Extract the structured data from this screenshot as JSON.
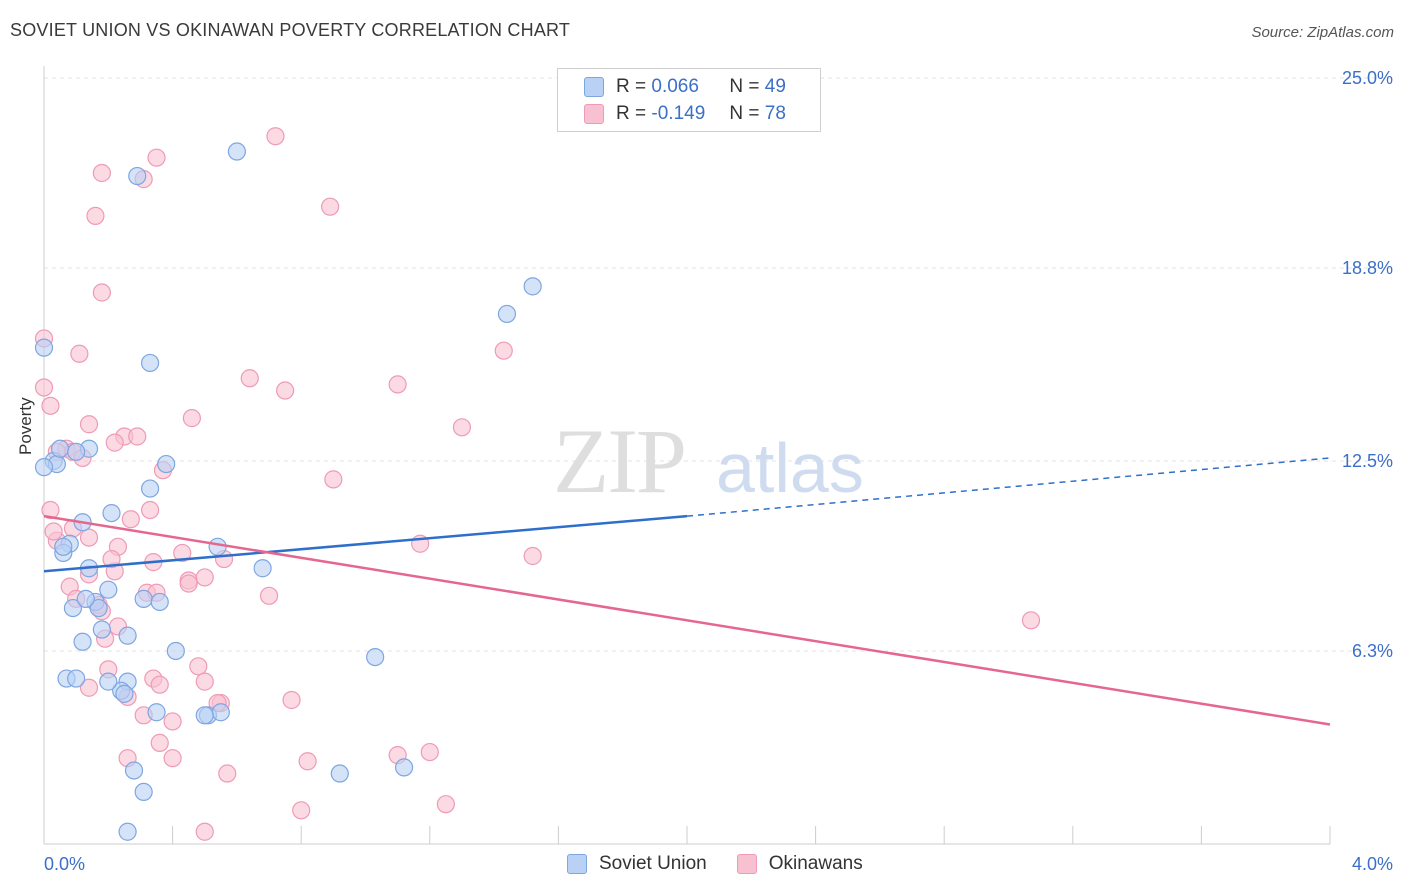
{
  "title": "SOVIET UNION VS OKINAWAN POVERTY CORRELATION CHART",
  "source": "Source: ZipAtlas.com",
  "watermark": {
    "zip": "ZIP",
    "atlas": "atlas"
  },
  "legend": {
    "rows": [
      {
        "r_label": "R =",
        "r_value": "0.066",
        "n_label": "N =",
        "n_value": "49"
      },
      {
        "r_label": "R =",
        "r_value": "-0.149",
        "n_label": "N =",
        "n_value": "78"
      }
    ]
  },
  "colors": {
    "soviet_fill": "#b9d1f5",
    "soviet_stroke": "#7ea6e0",
    "soviet_line": "#2f6fcc",
    "okinawan_fill": "#f8c1d2",
    "okinawan_stroke": "#ef9ab6",
    "okinawan_line": "#e5678f",
    "axis_label": "#3b6fc8",
    "grid": "#e3e3e3"
  },
  "chart_data": {
    "type": "scatter",
    "title": "SOVIET UNION VS OKINAWAN POVERTY CORRELATION CHART",
    "xlabel": "",
    "ylabel": "Poverty",
    "xlim": [
      0,
      4.0
    ],
    "ylim": [
      0,
      25.0
    ],
    "x_tick_labels": [
      "0.0%",
      "4.0%"
    ],
    "y_ticks": [
      6.3,
      12.5,
      18.8,
      25.0
    ],
    "y_tick_labels": [
      "6.3%",
      "12.5%",
      "18.8%",
      "25.0%"
    ],
    "legend_position": "bottom-center",
    "series": [
      {
        "name": "Soviet Union",
        "r": 0.066,
        "n": 49,
        "trend": {
          "x0": 0.0,
          "y0": 8.9,
          "x_solid_end": 2.0,
          "y_solid_end": 10.7,
          "x1": 4.0,
          "y1": 12.6
        },
        "points": [
          [
            0.0,
            16.2
          ],
          [
            0.6,
            22.6
          ],
          [
            0.29,
            21.8
          ],
          [
            1.52,
            18.2
          ],
          [
            1.44,
            17.3
          ],
          [
            0.33,
            15.7
          ],
          [
            0.03,
            12.5
          ],
          [
            0.04,
            12.4
          ],
          [
            0.14,
            12.9
          ],
          [
            0.38,
            12.4
          ],
          [
            0.05,
            12.9
          ],
          [
            0.33,
            11.6
          ],
          [
            0.21,
            10.8
          ],
          [
            0.12,
            10.5
          ],
          [
            0.08,
            9.8
          ],
          [
            0.06,
            9.5
          ],
          [
            0.54,
            9.7
          ],
          [
            0.68,
            9.0
          ],
          [
            0.14,
            9.0
          ],
          [
            0.2,
            8.3
          ],
          [
            0.31,
            8.0
          ],
          [
            0.16,
            7.9
          ],
          [
            0.09,
            7.7
          ],
          [
            0.17,
            7.7
          ],
          [
            0.18,
            7.0
          ],
          [
            0.26,
            6.8
          ],
          [
            0.12,
            6.6
          ],
          [
            0.41,
            6.3
          ],
          [
            1.03,
            6.1
          ],
          [
            0.07,
            5.4
          ],
          [
            0.1,
            5.4
          ],
          [
            0.26,
            5.3
          ],
          [
            0.24,
            5.0
          ],
          [
            0.25,
            4.9
          ],
          [
            0.35,
            4.3
          ],
          [
            0.51,
            4.2
          ],
          [
            0.55,
            4.3
          ],
          [
            0.28,
            2.4
          ],
          [
            0.92,
            2.3
          ],
          [
            1.12,
            2.5
          ],
          [
            0.31,
            1.7
          ],
          [
            0.26,
            0.4
          ],
          [
            0.1,
            12.8
          ],
          [
            0.06,
            9.7
          ],
          [
            0.13,
            8.0
          ],
          [
            0.36,
            7.9
          ],
          [
            0.2,
            5.3
          ],
          [
            0.5,
            4.2
          ],
          [
            0.0,
            12.3
          ]
        ]
      },
      {
        "name": "Okinawans",
        "r": -0.149,
        "n": 78,
        "trend": {
          "x0": 0.0,
          "y0": 10.7,
          "x1": 4.0,
          "y1": 3.9
        },
        "points": [
          [
            0.72,
            23.1
          ],
          [
            0.35,
            22.4
          ],
          [
            0.18,
            21.9
          ],
          [
            0.31,
            21.7
          ],
          [
            0.89,
            20.8
          ],
          [
            0.16,
            20.5
          ],
          [
            0.18,
            18.0
          ],
          [
            0.0,
            16.5
          ],
          [
            1.43,
            16.1
          ],
          [
            0.11,
            16.0
          ],
          [
            0.64,
            15.2
          ],
          [
            0.0,
            14.9
          ],
          [
            1.1,
            15.0
          ],
          [
            0.75,
            14.8
          ],
          [
            0.02,
            14.3
          ],
          [
            0.46,
            13.9
          ],
          [
            1.3,
            13.6
          ],
          [
            0.14,
            13.7
          ],
          [
            0.25,
            13.3
          ],
          [
            0.29,
            13.3
          ],
          [
            0.07,
            12.9
          ],
          [
            0.09,
            12.8
          ],
          [
            0.22,
            13.1
          ],
          [
            0.04,
            12.8
          ],
          [
            0.37,
            12.2
          ],
          [
            0.9,
            11.9
          ],
          [
            0.02,
            10.9
          ],
          [
            0.33,
            10.9
          ],
          [
            0.27,
            10.6
          ],
          [
            0.09,
            10.3
          ],
          [
            0.14,
            10.0
          ],
          [
            1.17,
            9.8
          ],
          [
            0.23,
            9.7
          ],
          [
            0.43,
            9.5
          ],
          [
            0.04,
            9.9
          ],
          [
            1.52,
            9.4
          ],
          [
            0.56,
            9.3
          ],
          [
            0.34,
            9.2
          ],
          [
            0.14,
            8.8
          ],
          [
            0.22,
            8.9
          ],
          [
            0.45,
            8.6
          ],
          [
            0.45,
            8.5
          ],
          [
            0.08,
            8.4
          ],
          [
            0.32,
            8.2
          ],
          [
            0.35,
            8.2
          ],
          [
            0.7,
            8.1
          ],
          [
            0.1,
            8.0
          ],
          [
            0.17,
            7.8
          ],
          [
            0.18,
            7.6
          ],
          [
            3.07,
            7.3
          ],
          [
            0.23,
            7.1
          ],
          [
            0.19,
            6.7
          ],
          [
            0.2,
            5.7
          ],
          [
            0.48,
            5.8
          ],
          [
            0.34,
            5.4
          ],
          [
            0.36,
            5.2
          ],
          [
            0.5,
            5.3
          ],
          [
            0.14,
            5.1
          ],
          [
            0.55,
            4.6
          ],
          [
            0.77,
            4.7
          ],
          [
            0.26,
            4.8
          ],
          [
            0.31,
            4.2
          ],
          [
            0.4,
            4.0
          ],
          [
            0.54,
            4.6
          ],
          [
            0.36,
            3.3
          ],
          [
            1.1,
            2.9
          ],
          [
            1.2,
            3.0
          ],
          [
            0.26,
            2.8
          ],
          [
            0.4,
            2.8
          ],
          [
            0.82,
            2.7
          ],
          [
            0.57,
            2.3
          ],
          [
            1.25,
            1.3
          ],
          [
            0.8,
            1.1
          ],
          [
            0.5,
            0.4
          ],
          [
            0.03,
            10.2
          ],
          [
            0.12,
            12.6
          ],
          [
            0.21,
            9.3
          ],
          [
            0.5,
            8.7
          ]
        ]
      }
    ]
  }
}
